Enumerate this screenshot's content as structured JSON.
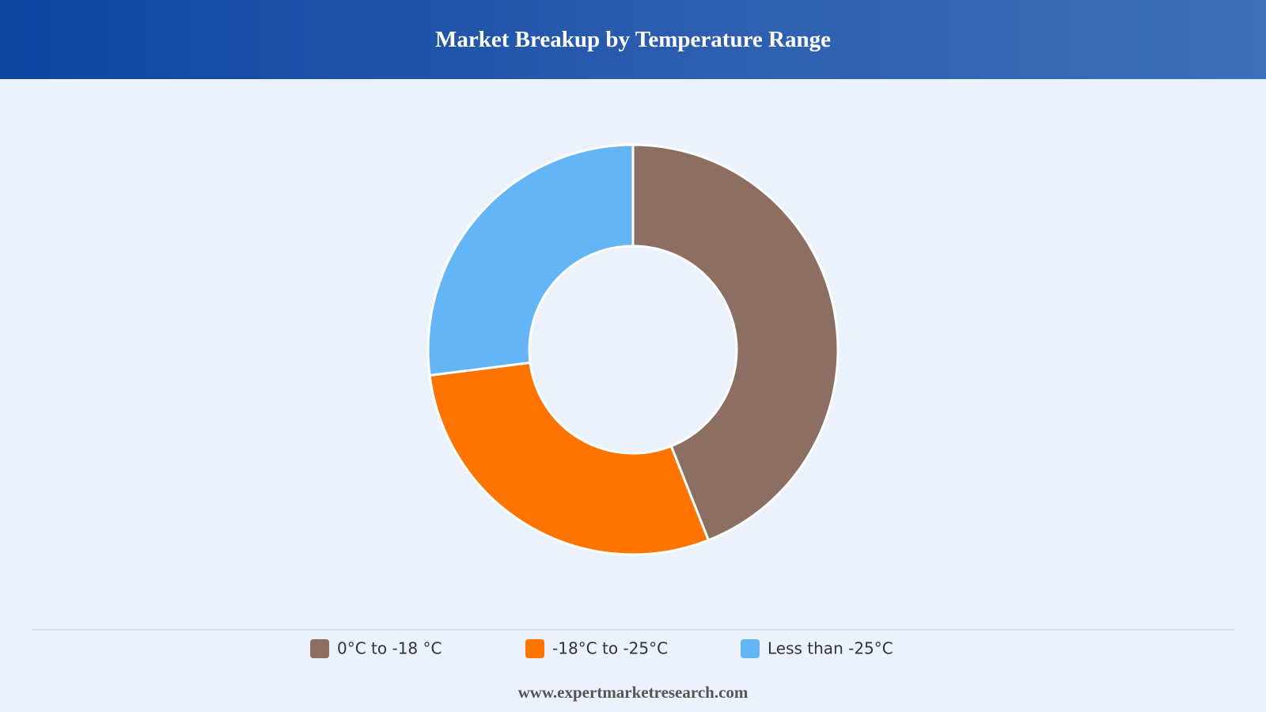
{
  "chart_data": {
    "type": "pie",
    "title": "Market Breakup by Temperature Range",
    "categories": [
      "0°C to -18 °C",
      "-18°C to -25°C",
      "Less than -25°C"
    ],
    "values": [
      44,
      29,
      27
    ],
    "colors": [
      "#8d6e63",
      "#ff7300",
      "#64b5f6"
    ],
    "footer": "www.expertmarketresearch.com"
  }
}
